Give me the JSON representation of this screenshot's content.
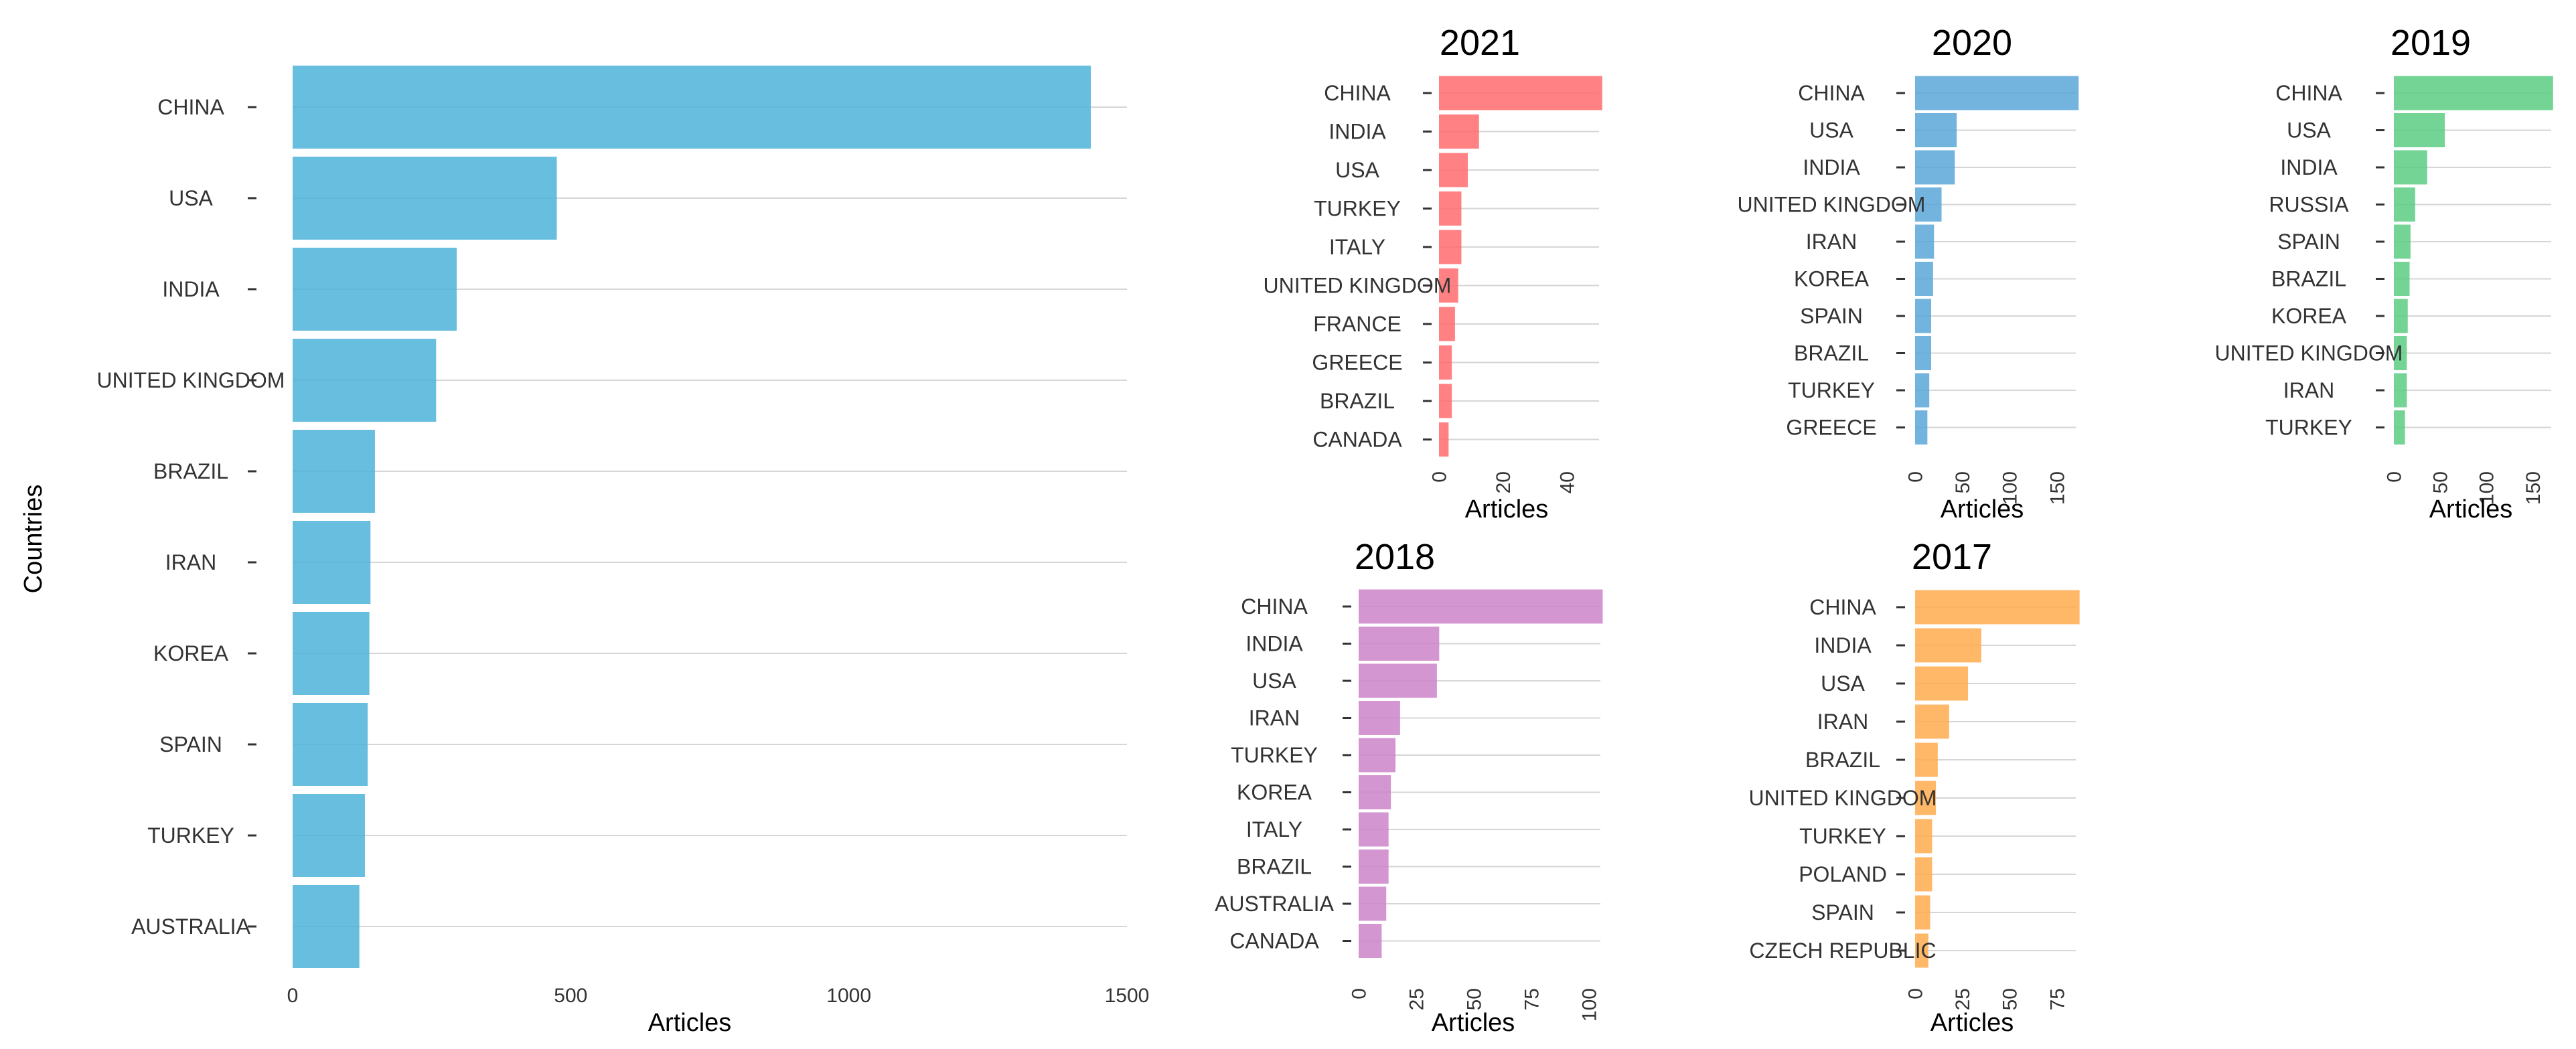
{
  "chart_data": [
    {
      "type": "bar",
      "orientation": "horizontal",
      "title": "",
      "xlabel": "Articles",
      "ylabel": "Countries",
      "color": "#4eb3d9",
      "xlim": [
        0,
        1500
      ],
      "xticks": [
        0,
        500,
        1000,
        1500
      ],
      "xtick_labels": [
        "0",
        "500",
        "1000",
        "1500"
      ],
      "categories": [
        "CHINA",
        "USA",
        "INDIA",
        "UNITED KINGDOM",
        "BRAZIL",
        "IRAN",
        "KOREA",
        "SPAIN",
        "TURKEY",
        "AUSTRALIA"
      ],
      "values": [
        1435,
        475,
        295,
        258,
        148,
        140,
        138,
        135,
        130,
        120
      ]
    },
    {
      "type": "bar",
      "orientation": "horizontal",
      "title": "2021",
      "xlabel": "Articles",
      "color": "#ff6b6e",
      "xlim": [
        0,
        50
      ],
      "xticks": [
        0,
        20,
        40
      ],
      "xtick_labels": [
        "0",
        "20",
        "40"
      ],
      "categories": [
        "CHINA",
        "INDIA",
        "USA",
        "TURKEY",
        "ITALY",
        "UNITED KINGDOM",
        "FRANCE",
        "GREECE",
        "BRAZIL",
        "CANADA"
      ],
      "values": [
        51,
        12.5,
        9,
        7,
        7,
        6,
        5,
        4,
        4,
        3
      ]
    },
    {
      "type": "bar",
      "orientation": "horizontal",
      "title": "2020",
      "xlabel": "Articles",
      "color": "#5ba7d8",
      "xlim": [
        0,
        170
      ],
      "xticks": [
        0,
        50,
        100,
        150
      ],
      "xtick_labels": [
        "0",
        "50",
        "100",
        "150"
      ],
      "categories": [
        "CHINA",
        "USA",
        "INDIA",
        "UNITED KINGDOM",
        "IRAN",
        "KOREA",
        "SPAIN",
        "BRAZIL",
        "TURKEY",
        "GREECE"
      ],
      "values": [
        173,
        44,
        42,
        28,
        20,
        19,
        17,
        17,
        15,
        13
      ]
    },
    {
      "type": "bar",
      "orientation": "horizontal",
      "title": "2019",
      "xlabel": "Articles",
      "color": "#5ccc83",
      "xlim": [
        0,
        170
      ],
      "xticks": [
        0,
        50,
        100,
        150
      ],
      "xtick_labels": [
        "0",
        "50",
        "100",
        "150"
      ],
      "categories": [
        "CHINA",
        "USA",
        "INDIA",
        "RUSSIA",
        "SPAIN",
        "BRAZIL",
        "KOREA",
        "UNITED KINGDOM",
        "IRAN",
        "TURKEY"
      ],
      "values": [
        172,
        55,
        36,
        23,
        18,
        17,
        15,
        14,
        14,
        12
      ]
    },
    {
      "type": "bar",
      "orientation": "horizontal",
      "title": "2018",
      "xlabel": "Articles",
      "color": "#cc84c8",
      "xlim": [
        0,
        105
      ],
      "xticks": [
        0,
        25,
        50,
        75,
        100
      ],
      "xtick_labels": [
        "0",
        "25",
        "50",
        "75",
        "100"
      ],
      "categories": [
        "CHINA",
        "INDIA",
        "USA",
        "IRAN",
        "TURKEY",
        "KOREA",
        "ITALY",
        "BRAZIL",
        "AUSTRALIA",
        "CANADA"
      ],
      "values": [
        106,
        35,
        34,
        18,
        16,
        14,
        13,
        13,
        12,
        10
      ]
    },
    {
      "type": "bar",
      "orientation": "horizontal",
      "title": "2017",
      "xlabel": "Articles",
      "color": "#ffaa4d",
      "xlim": [
        0,
        85
      ],
      "xticks": [
        0,
        25,
        50,
        75
      ],
      "xtick_labels": [
        "0",
        "25",
        "50",
        "75"
      ],
      "categories": [
        "CHINA",
        "INDIA",
        "USA",
        "IRAN",
        "BRAZIL",
        "UNITED KINGDOM",
        "TURKEY",
        "POLAND",
        "SPAIN",
        "CZECH REPUBLIC"
      ],
      "values": [
        87,
        35,
        28,
        18,
        12,
        11,
        9,
        9,
        8,
        7
      ]
    }
  ]
}
